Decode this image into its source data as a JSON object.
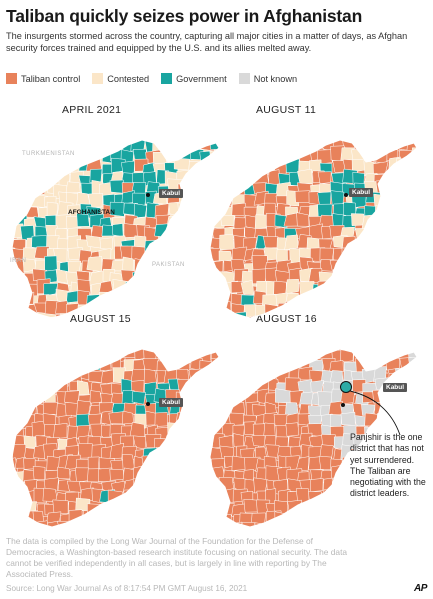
{
  "header": {
    "title": "Taliban quickly seizes power in Afghanistan",
    "subtitle": "The insurgents stormed across the country, capturing all major cities in a matter of days, as Afghan security forces trained and equipped by the U.S. and its allies melted away."
  },
  "legend": [
    {
      "label": "Taliban control",
      "color": "#e8825b"
    },
    {
      "label": "Contested",
      "color": "#fbe6c8"
    },
    {
      "label": "Government",
      "color": "#19a5a0"
    },
    {
      "label": "Not known",
      "color": "#d9d9d9"
    }
  ],
  "panels": [
    {
      "title": "APRIL 2021",
      "shares": {
        "taliban": 0.25,
        "contested": 0.47,
        "government": 0.28,
        "unknown": 0.0
      }
    },
    {
      "title": "AUGUST 11",
      "shares": {
        "taliban": 0.62,
        "contested": 0.25,
        "government": 0.13,
        "unknown": 0.0
      }
    },
    {
      "title": "AUGUST 15",
      "shares": {
        "taliban": 0.88,
        "contested": 0.04,
        "government": 0.08,
        "unknown": 0.0
      }
    },
    {
      "title": "AUGUST 16",
      "shares": {
        "taliban": 0.8,
        "contested": 0.0,
        "government": 0.01,
        "unknown": 0.19
      }
    }
  ],
  "map_labels": {
    "turkmenistan": "TURKMENISTAN",
    "afghanistan": "AFGHANISTAN",
    "iran": "IRAN",
    "pakistan": "PAKISTAN",
    "kabul": "Kabul"
  },
  "annotation": "Panjshir is the one district that has not yet surrendered. The Taliban are negotiating with the district leaders.",
  "footer": {
    "source_note": "The data is  compiled by the Long War Journal of the Foundation for the Defense of Democracies, a Washington-based  research institute focusing on national security. The data cannot be verified independently in all cases, but is largely in line with reporting by The Associated Press.",
    "credit": "Source: Long War Journal     As of  8:17:54 PM GMT August 16, 2021",
    "logo": "AP"
  }
}
